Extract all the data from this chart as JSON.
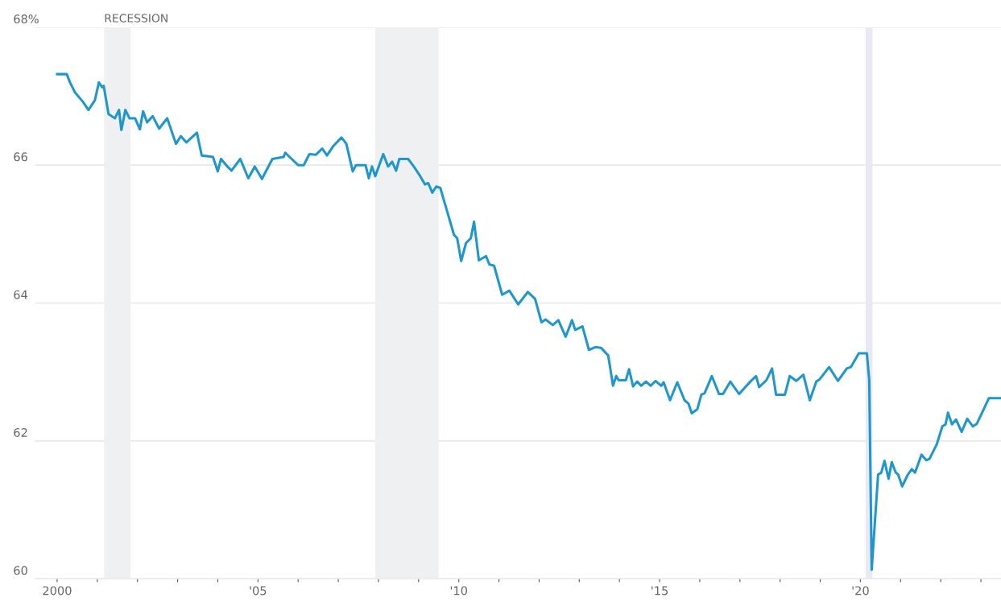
{
  "chart_data": {
    "type": "line",
    "x": [
      2000.0,
      2000.24,
      2000.32,
      2000.44,
      2000.64,
      2000.78,
      2000.94,
      2001.04,
      2001.12,
      2001.16,
      2001.28,
      2001.44,
      2001.54,
      2001.6,
      2001.7,
      2001.8,
      2001.94,
      2002.06,
      2002.14,
      2002.24,
      2002.38,
      2002.54,
      2002.74,
      2002.96,
      2003.08,
      2003.22,
      2003.48,
      2003.6,
      2003.88,
      2004.0,
      2004.08,
      2004.24,
      2004.34,
      2004.56,
      2004.76,
      2004.92,
      2005.1,
      2005.36,
      2005.64,
      2005.68,
      2005.84,
      2006.0,
      2006.14,
      2006.28,
      2006.44,
      2006.6,
      2006.72,
      2006.88,
      2007.08,
      2007.2,
      2007.36,
      2007.44,
      2007.68,
      2007.76,
      2007.84,
      2007.92,
      2008.12,
      2008.24,
      2008.34,
      2008.44,
      2008.52,
      2008.74,
      2008.88,
      2009.04,
      2009.16,
      2009.24,
      2009.34,
      2009.44,
      2009.54,
      2009.68,
      2009.88,
      2009.96,
      2010.06,
      2010.18,
      2010.3,
      2010.38,
      2010.5,
      2010.68,
      2010.76,
      2010.88,
      2011.08,
      2011.26,
      2011.48,
      2011.72,
      2011.9,
      2012.06,
      2012.16,
      2012.34,
      2012.48,
      2012.66,
      2012.82,
      2012.9,
      2013.08,
      2013.24,
      2013.4,
      2013.54,
      2013.72,
      2013.84,
      2013.92,
      2013.98,
      2014.16,
      2014.24,
      2014.34,
      2014.44,
      2014.54,
      2014.66,
      2014.78,
      2014.9,
      2015.04,
      2015.1,
      2015.26,
      2015.44,
      2015.62,
      2015.72,
      2015.8,
      2015.94,
      2016.04,
      2016.12,
      2016.3,
      2016.48,
      2016.58,
      2016.76,
      2016.98,
      2017.26,
      2017.4,
      2017.48,
      2017.66,
      2017.8,
      2017.9,
      2018.12,
      2018.24,
      2018.4,
      2018.58,
      2018.74,
      2018.9,
      2018.98,
      2019.22,
      2019.44,
      2019.66,
      2019.76,
      2019.96,
      2020.16,
      2020.22,
      2020.28,
      2020.44,
      2020.52,
      2020.6,
      2020.7,
      2020.78,
      2020.88,
      2020.94,
      2021.04,
      2021.18,
      2021.28,
      2021.36,
      2021.52,
      2021.64,
      2021.72,
      2021.9,
      2022.04,
      2022.12,
      2022.18,
      2022.28,
      2022.38,
      2022.52,
      2022.66,
      2022.8,
      2022.9,
      2023.2,
      2023.5
    ],
    "series": [
      {
        "color": "#1f97cc",
        "values": [
          67.32,
          67.32,
          67.2,
          67.06,
          66.92,
          66.8,
          66.94,
          67.2,
          67.13,
          67.15,
          66.74,
          66.68,
          66.8,
          66.51,
          66.8,
          66.68,
          66.68,
          66.52,
          66.78,
          66.62,
          66.71,
          66.53,
          66.68,
          66.31,
          66.42,
          66.33,
          66.47,
          66.14,
          66.12,
          65.91,
          66.09,
          65.98,
          65.92,
          66.09,
          65.81,
          65.98,
          65.8,
          66.09,
          66.12,
          66.18,
          66.09,
          66.0,
          66.0,
          66.16,
          66.15,
          66.24,
          66.14,
          66.28,
          66.4,
          66.31,
          65.91,
          66.0,
          66.0,
          65.81,
          65.98,
          65.84,
          66.16,
          65.98,
          66.05,
          65.92,
          66.09,
          66.09,
          65.98,
          65.84,
          65.72,
          65.74,
          65.6,
          65.69,
          65.67,
          65.39,
          64.99,
          64.94,
          64.61,
          64.87,
          64.94,
          65.18,
          64.62,
          64.68,
          64.56,
          64.54,
          64.12,
          64.18,
          63.98,
          64.16,
          64.06,
          63.72,
          63.76,
          63.68,
          63.75,
          63.51,
          63.75,
          63.61,
          63.66,
          63.32,
          63.36,
          63.35,
          63.24,
          62.8,
          62.94,
          62.88,
          62.88,
          63.04,
          62.79,
          62.86,
          62.8,
          62.86,
          62.8,
          62.87,
          62.8,
          62.85,
          62.59,
          62.85,
          62.59,
          62.54,
          62.4,
          62.46,
          62.67,
          62.69,
          62.94,
          62.68,
          62.68,
          62.86,
          62.68,
          62.86,
          62.94,
          62.78,
          62.88,
          63.05,
          62.67,
          62.67,
          62.94,
          62.87,
          62.96,
          62.59,
          62.86,
          62.89,
          63.07,
          62.87,
          63.05,
          63.07,
          63.27,
          63.27,
          62.88,
          60.13,
          61.51,
          61.54,
          61.71,
          61.45,
          61.69,
          61.54,
          61.51,
          61.34,
          61.51,
          61.59,
          61.54,
          61.8,
          61.72,
          61.74,
          61.95,
          62.21,
          62.24,
          62.41,
          62.24,
          62.31,
          62.13,
          62.32,
          62.21,
          62.25,
          62.62,
          62.62
        ]
      }
    ],
    "xlim": [
      1999.45,
      2023.5
    ],
    "xticks": [
      {
        "value": 2000,
        "label": "2000"
      },
      {
        "value": 2001,
        "label": null
      },
      {
        "value": 2002,
        "label": null
      },
      {
        "value": 2003,
        "label": null
      },
      {
        "value": 2004,
        "label": null
      },
      {
        "value": 2005,
        "label": "'05"
      },
      {
        "value": 2006,
        "label": null
      },
      {
        "value": 2007,
        "label": null
      },
      {
        "value": 2008,
        "label": null
      },
      {
        "value": 2009,
        "label": null
      },
      {
        "value": 2010,
        "label": "'10"
      },
      {
        "value": 2011,
        "label": null
      },
      {
        "value": 2012,
        "label": null
      },
      {
        "value": 2013,
        "label": null
      },
      {
        "value": 2014,
        "label": null
      },
      {
        "value": 2015,
        "label": "'15"
      },
      {
        "value": 2016,
        "label": null
      },
      {
        "value": 2017,
        "label": null
      },
      {
        "value": 2018,
        "label": null
      },
      {
        "value": 2019,
        "label": null
      },
      {
        "value": 2020,
        "label": "'20"
      },
      {
        "value": 2021,
        "label": null
      },
      {
        "value": 2022,
        "label": null
      },
      {
        "value": 2023,
        "label": null
      }
    ],
    "ylim": [
      60,
      68
    ],
    "yticks": [
      60,
      62,
      64,
      66,
      {
        "value": 68,
        "label": "68%"
      }
    ],
    "grid": "y",
    "bands": [
      {
        "axis": "x",
        "from": 2001.17,
        "to": 2001.83,
        "label": "RECESSION",
        "color": "#eef0f2"
      },
      {
        "axis": "x",
        "from": 2007.92,
        "to": 2009.5,
        "color": "#eef0f2"
      },
      {
        "axis": "x",
        "from": 2020.13,
        "to": 2020.3,
        "color": "#e9e9f3"
      }
    ]
  }
}
